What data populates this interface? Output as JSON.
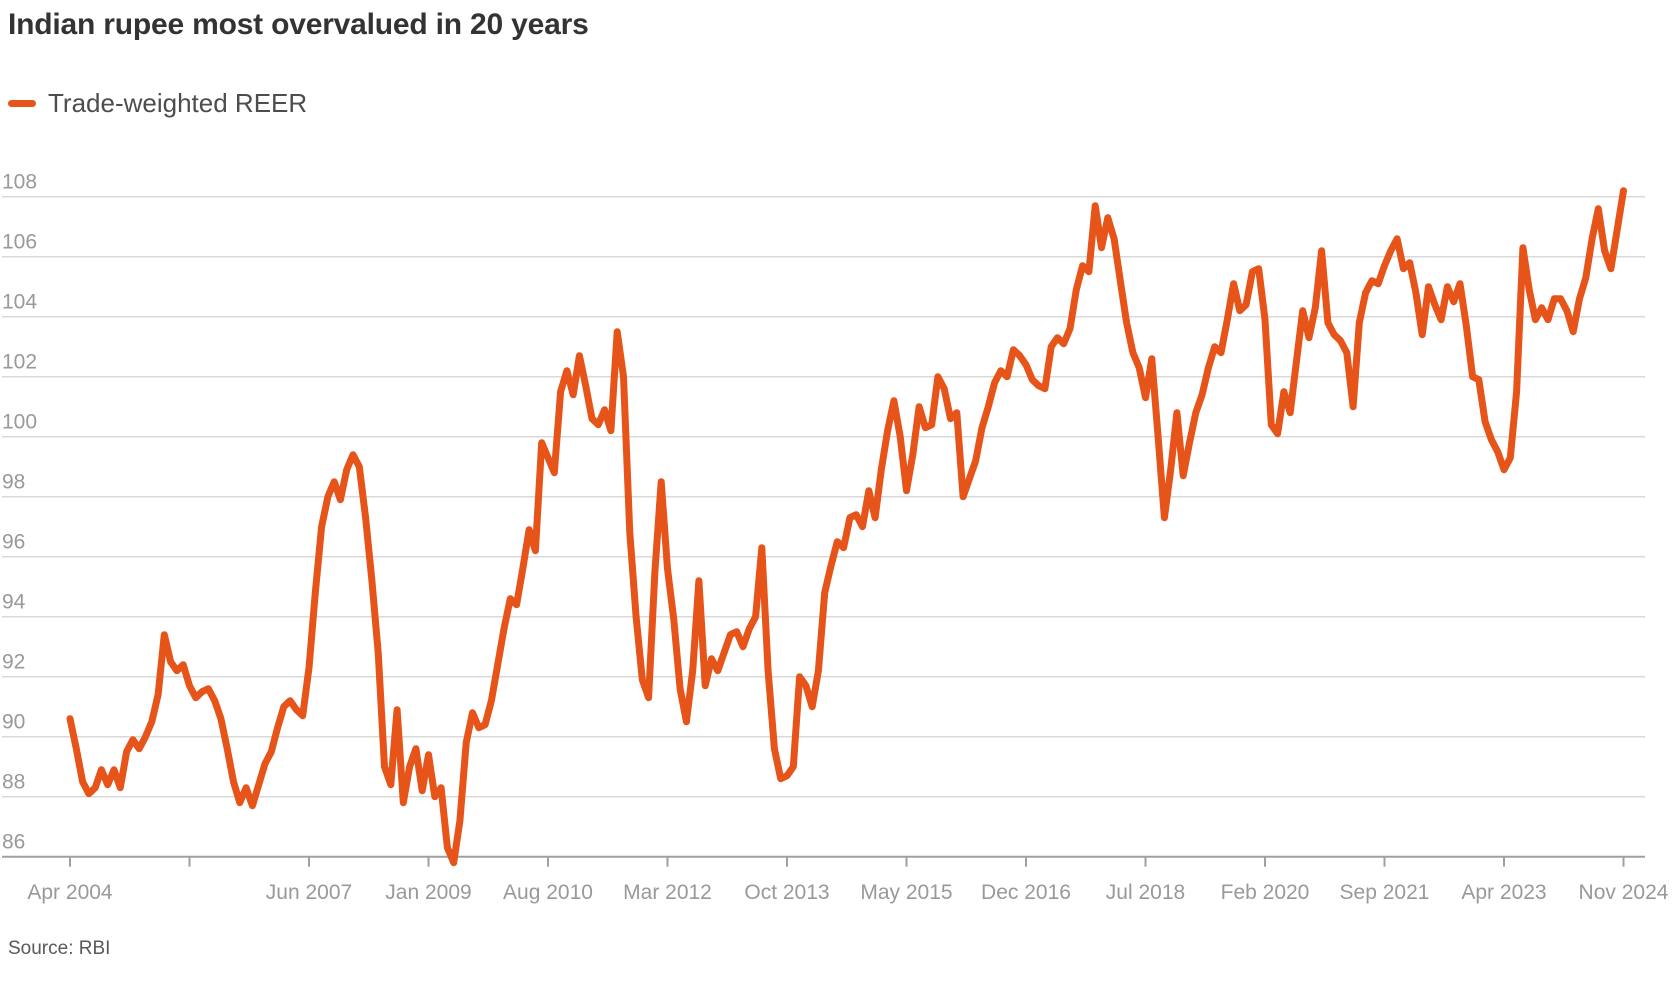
{
  "chart_data": {
    "type": "line",
    "title": "Indian rupee most overvalued in 20 years",
    "legend": "Trade-weighted REER",
    "source": "Source: RBI",
    "line_color": "#e6541a",
    "grid_color": "#d9d9d9",
    "axis_color": "#a0a0a0",
    "tick_label_color": "#999999",
    "grid_on": true,
    "legend_position": "top-left",
    "ylim": [
      86,
      108
    ],
    "y_tick_labels": [
      "108",
      "106",
      "104",
      "102",
      "100",
      "98",
      "96",
      "94",
      "92",
      "90",
      "88",
      "86"
    ],
    "x_start": "Apr 2004",
    "x_end": "Nov 2024",
    "x_frequency": "monthly",
    "x_ticks": [
      {
        "month_offset": 0,
        "label": "Apr 2004"
      },
      {
        "month_offset": 19,
        "label": ""
      },
      {
        "month_offset": 38,
        "label": "Jun 2007"
      },
      {
        "month_offset": 57,
        "label": "Jan 2009"
      },
      {
        "month_offset": 76,
        "label": "Aug 2010"
      },
      {
        "month_offset": 95,
        "label": "Mar 2012"
      },
      {
        "month_offset": 114,
        "label": "Oct 2013"
      },
      {
        "month_offset": 133,
        "label": "May 2015"
      },
      {
        "month_offset": 152,
        "label": "Dec 2016"
      },
      {
        "month_offset": 171,
        "label": "Jul 2018"
      },
      {
        "month_offset": 190,
        "label": "Feb 2020"
      },
      {
        "month_offset": 209,
        "label": "Sep 2021"
      },
      {
        "month_offset": 228,
        "label": "Apr 2023"
      },
      {
        "month_offset": 247,
        "label": "Nov 2024"
      }
    ],
    "series": [
      {
        "name": "Trade-weighted REER",
        "values": [
          90.6,
          89.6,
          88.5,
          88.1,
          88.3,
          88.9,
          88.4,
          88.9,
          88.3,
          89.5,
          89.9,
          89.6,
          90.0,
          90.5,
          91.4,
          93.4,
          92.5,
          92.2,
          92.4,
          91.7,
          91.3,
          91.5,
          91.6,
          91.2,
          90.6,
          89.6,
          88.5,
          87.8,
          88.3,
          87.7,
          88.4,
          89.1,
          89.5,
          90.3,
          91.0,
          91.2,
          90.9,
          90.7,
          92.3,
          94.8,
          97.0,
          98.0,
          98.5,
          97.9,
          98.9,
          99.4,
          99.0,
          97.3,
          95.2,
          92.8,
          89.0,
          88.4,
          90.9,
          87.8,
          89.0,
          89.6,
          88.2,
          89.4,
          88.0,
          88.3,
          86.3,
          85.8,
          87.2,
          89.8,
          90.8,
          90.3,
          90.4,
          91.2,
          92.4,
          93.6,
          94.6,
          94.4,
          95.6,
          96.9,
          96.2,
          99.8,
          99.3,
          98.8,
          101.5,
          102.2,
          101.4,
          102.7,
          101.7,
          100.6,
          100.4,
          100.9,
          100.2,
          103.5,
          102.0,
          96.8,
          94.0,
          91.9,
          91.3,
          95.5,
          98.5,
          95.6,
          93.9,
          91.6,
          90.5,
          92.2,
          95.2,
          91.7,
          92.6,
          92.2,
          92.8,
          93.4,
          93.5,
          93.0,
          93.6,
          94.0,
          96.3,
          92.2,
          89.6,
          88.6,
          88.7,
          89.0,
          92.0,
          91.7,
          91.0,
          92.2,
          94.8,
          95.7,
          96.5,
          96.3,
          97.3,
          97.4,
          97.0,
          98.2,
          97.3,
          98.9,
          100.2,
          101.2,
          100.0,
          98.2,
          99.4,
          101.0,
          100.3,
          100.4,
          102.0,
          101.6,
          100.6,
          100.8,
          98.0,
          98.6,
          99.2,
          100.3,
          101.0,
          101.8,
          102.2,
          102.0,
          102.9,
          102.7,
          102.4,
          101.9,
          101.7,
          101.6,
          103.0,
          103.3,
          103.1,
          103.6,
          104.9,
          105.7,
          105.5,
          107.7,
          106.3,
          107.3,
          106.6,
          105.2,
          103.8,
          102.8,
          102.3,
          101.3,
          102.6,
          100.0,
          97.3,
          98.9,
          100.8,
          98.7,
          99.8,
          100.8,
          101.4,
          102.3,
          103.0,
          102.8,
          103.9,
          105.1,
          104.2,
          104.4,
          105.5,
          105.6,
          103.9,
          100.4,
          100.1,
          101.5,
          100.8,
          102.5,
          104.2,
          103.3,
          104.3,
          106.2,
          103.8,
          103.4,
          103.2,
          102.8,
          101.0,
          103.8,
          104.8,
          105.2,
          105.1,
          105.7,
          106.2,
          106.6,
          105.6,
          105.8,
          104.8,
          103.4,
          105.0,
          104.4,
          103.9,
          105.0,
          104.5,
          105.1,
          103.7,
          102.0,
          101.9,
          100.5,
          99.9,
          99.5,
          98.9,
          99.3,
          101.5,
          106.3,
          104.9,
          103.9,
          104.3,
          103.9,
          104.6,
          104.6,
          104.2,
          103.5,
          104.6,
          105.3,
          106.6,
          107.6,
          106.2,
          105.6,
          106.9,
          108.2
        ]
      }
    ]
  }
}
